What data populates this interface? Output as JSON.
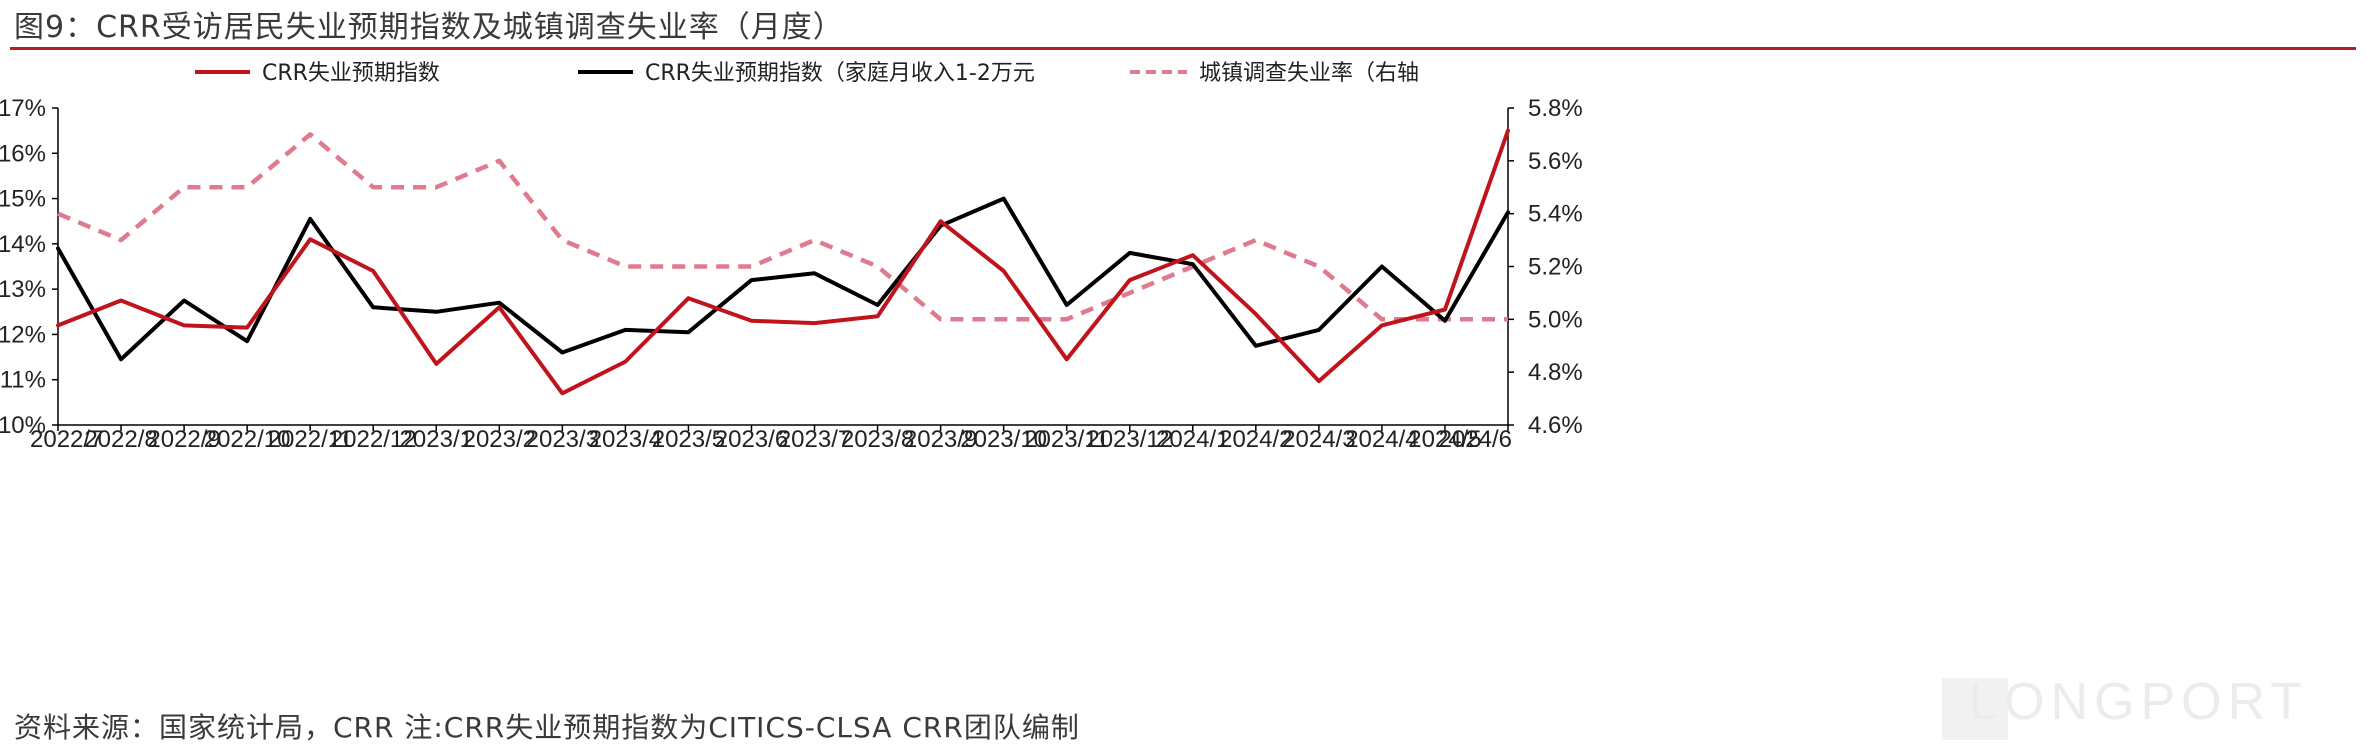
{
  "title": "图9：CRR受访居民失业预期指数及城镇调查失业率（月度）",
  "footer": "资料来源：国家统计局，CRR 注:CRR失业预期指数为CITICS-CLSA CRR团队编制",
  "watermark": "LONGPORT",
  "colors": {
    "accent_rule": "#b01f24",
    "red": "#c0141c",
    "black": "#000000",
    "pink": "#e07a8e"
  },
  "chart_data": {
    "type": "line",
    "categories": [
      "2022/7",
      "2022/8",
      "2022/9",
      "2022/10",
      "2022/11",
      "2022/12",
      "2023/1",
      "2023/2",
      "2023/3",
      "2023/4",
      "2023/5",
      "2023/6",
      "2023/7",
      "2023/8",
      "2023/9",
      "2023/10",
      "2023/11",
      "2023/12",
      "2024/1",
      "2024/2",
      "2024/3",
      "2024/4",
      "2024/5",
      "2024/6"
    ],
    "left_axis": {
      "min": 10,
      "max": 17,
      "step": 1,
      "tick_labels": [
        "10%",
        "11%",
        "12%",
        "13%",
        "14%",
        "15%",
        "16%",
        "17%"
      ]
    },
    "right_axis": {
      "min": 4.6,
      "max": 5.8,
      "step": 0.2,
      "tick_labels": [
        "4.6%",
        "4.8%",
        "5.0%",
        "5.2%",
        "5.4%",
        "5.6%",
        "5.8%"
      ]
    },
    "legend_position": "top",
    "series": [
      {
        "name": "CRR失业预期指数",
        "axis": "left",
        "style": "solid",
        "color": "#c0141c",
        "values": [
          12.2,
          12.75,
          12.2,
          12.15,
          14.1,
          13.4,
          11.35,
          12.6,
          10.7,
          11.4,
          12.8,
          12.3,
          12.25,
          12.4,
          14.5,
          13.4,
          11.45,
          13.2,
          13.75,
          12.45,
          10.97,
          12.2,
          12.55,
          16.5
        ]
      },
      {
        "name": "CRR失业预期指数（家庭月收入1-2万元",
        "axis": "left",
        "style": "solid",
        "color": "#000000",
        "values": [
          13.9,
          11.45,
          12.75,
          11.85,
          14.55,
          12.6,
          12.5,
          12.7,
          11.6,
          12.1,
          12.05,
          13.2,
          13.35,
          12.65,
          14.4,
          15.0,
          12.65,
          13.8,
          13.55,
          11.75,
          12.1,
          13.5,
          12.3,
          14.7
        ]
      },
      {
        "name": "城镇调查失业率（右轴",
        "axis": "right",
        "style": "dashed",
        "color": "#e07a8e",
        "values": [
          5.4,
          5.3,
          5.5,
          5.5,
          5.7,
          5.5,
          5.5,
          5.6,
          5.3,
          5.2,
          5.2,
          5.2,
          5.3,
          5.2,
          5.0,
          5.0,
          5.0,
          5.1,
          5.2,
          5.3,
          5.2,
          5.0,
          5.0,
          5.0
        ]
      }
    ]
  }
}
